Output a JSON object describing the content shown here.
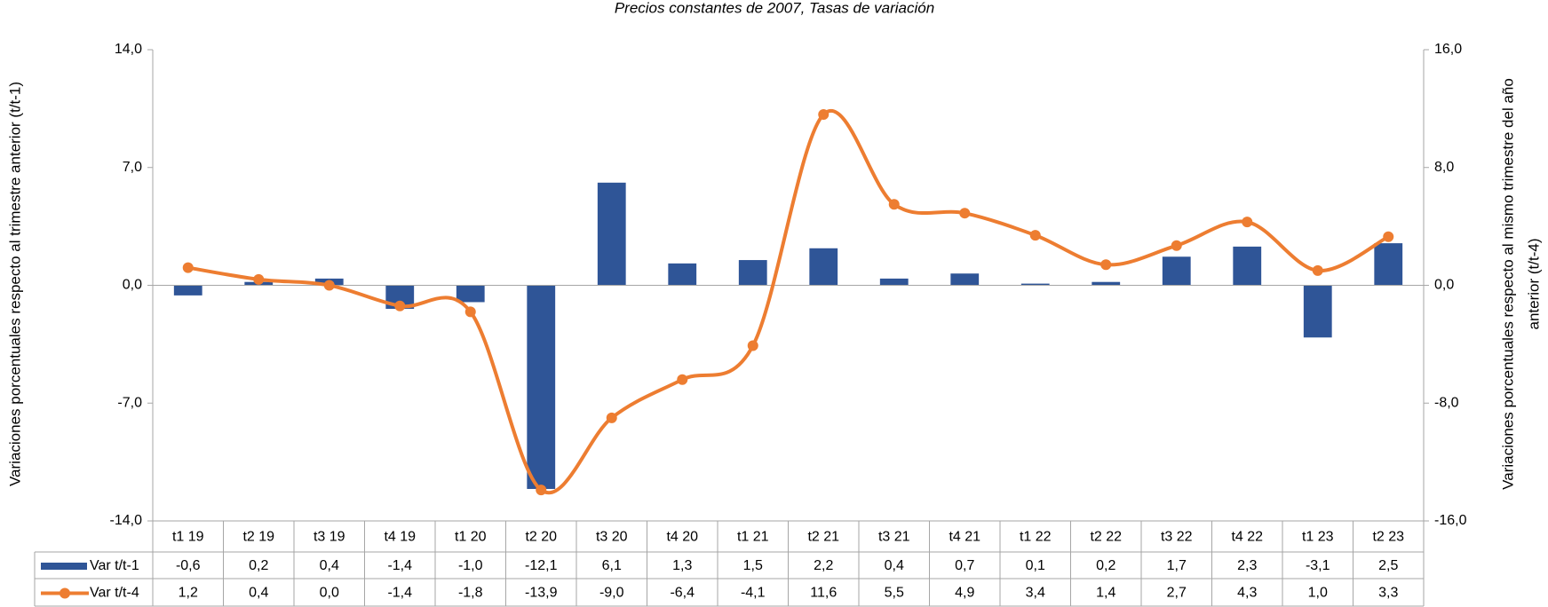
{
  "chart_data": {
    "type": "combo",
    "subtitle": "Precios constantes de 2007, Tasas de variación",
    "ylabel": "Variaciones porcentuales respecto al trimestre anterior (t/t-1)",
    "y2label": [
      "Variaciones porcentuales respecto al mismo trimestre del año",
      "anterior (t/t-4)"
    ],
    "categories": [
      "t1 19",
      "t2 19",
      "t3 19",
      "t4 19",
      "t1 20",
      "t2 20",
      "t3 20",
      "t4 20",
      "t1 21",
      "t2 21",
      "t3 21",
      "t4 21",
      "t1 22",
      "t2 22",
      "t3 22",
      "t4 22",
      "t1 23",
      "t2 23"
    ],
    "series": [
      {
        "name": "Var t/t-1",
        "type": "bar",
        "color": "#2F5597",
        "values": [
          -0.6,
          0.2,
          0.4,
          -1.4,
          -1.0,
          -12.1,
          6.1,
          1.3,
          1.5,
          2.2,
          0.4,
          0.7,
          0.1,
          0.2,
          1.7,
          2.3,
          -3.1,
          2.5
        ],
        "value_labels": [
          "-0,6",
          "0,2",
          "0,4",
          "-1,4",
          "-1,0",
          "-12,1",
          "6,1",
          "1,3",
          "1,5",
          "2,2",
          "0,4",
          "0,7",
          "0,1",
          "0,2",
          "1,7",
          "2,3",
          "-3,1",
          "2,5"
        ]
      },
      {
        "name": "Var t/t-4",
        "type": "line",
        "axis": "y2",
        "color": "#ED7D31",
        "values": [
          1.2,
          0.4,
          0.0,
          -1.4,
          -1.8,
          -13.9,
          -9.0,
          -6.4,
          -4.1,
          11.6,
          5.5,
          4.9,
          3.4,
          1.4,
          2.7,
          4.3,
          1.0,
          3.3
        ],
        "value_labels": [
          "1,2",
          "0,4",
          "0,0",
          "-1,4",
          "-1,8",
          "-13,9",
          "-9,0",
          "-6,4",
          "-4,1",
          "11,6",
          "5,5",
          "4,9",
          "3,4",
          "1,4",
          "2,7",
          "4,3",
          "1,0",
          "3,3"
        ]
      }
    ],
    "ylim": [
      -14,
      14
    ],
    "yticks": [
      {
        "value": -14,
        "label": "-14,0"
      },
      {
        "value": -7,
        "label": "-7,0"
      },
      {
        "value": 0,
        "label": "0,0"
      },
      {
        "value": 7,
        "label": "7,0"
      },
      {
        "value": 14,
        "label": "14,0"
      }
    ],
    "y2lim": [
      -16,
      16
    ],
    "y2ticks": [
      {
        "value": -16,
        "label": "-16,0"
      },
      {
        "value": -8,
        "label": "-8,0"
      },
      {
        "value": 0,
        "label": "0,0"
      },
      {
        "value": 8,
        "label": "8,0"
      },
      {
        "value": 16,
        "label": "16,0"
      }
    ]
  }
}
